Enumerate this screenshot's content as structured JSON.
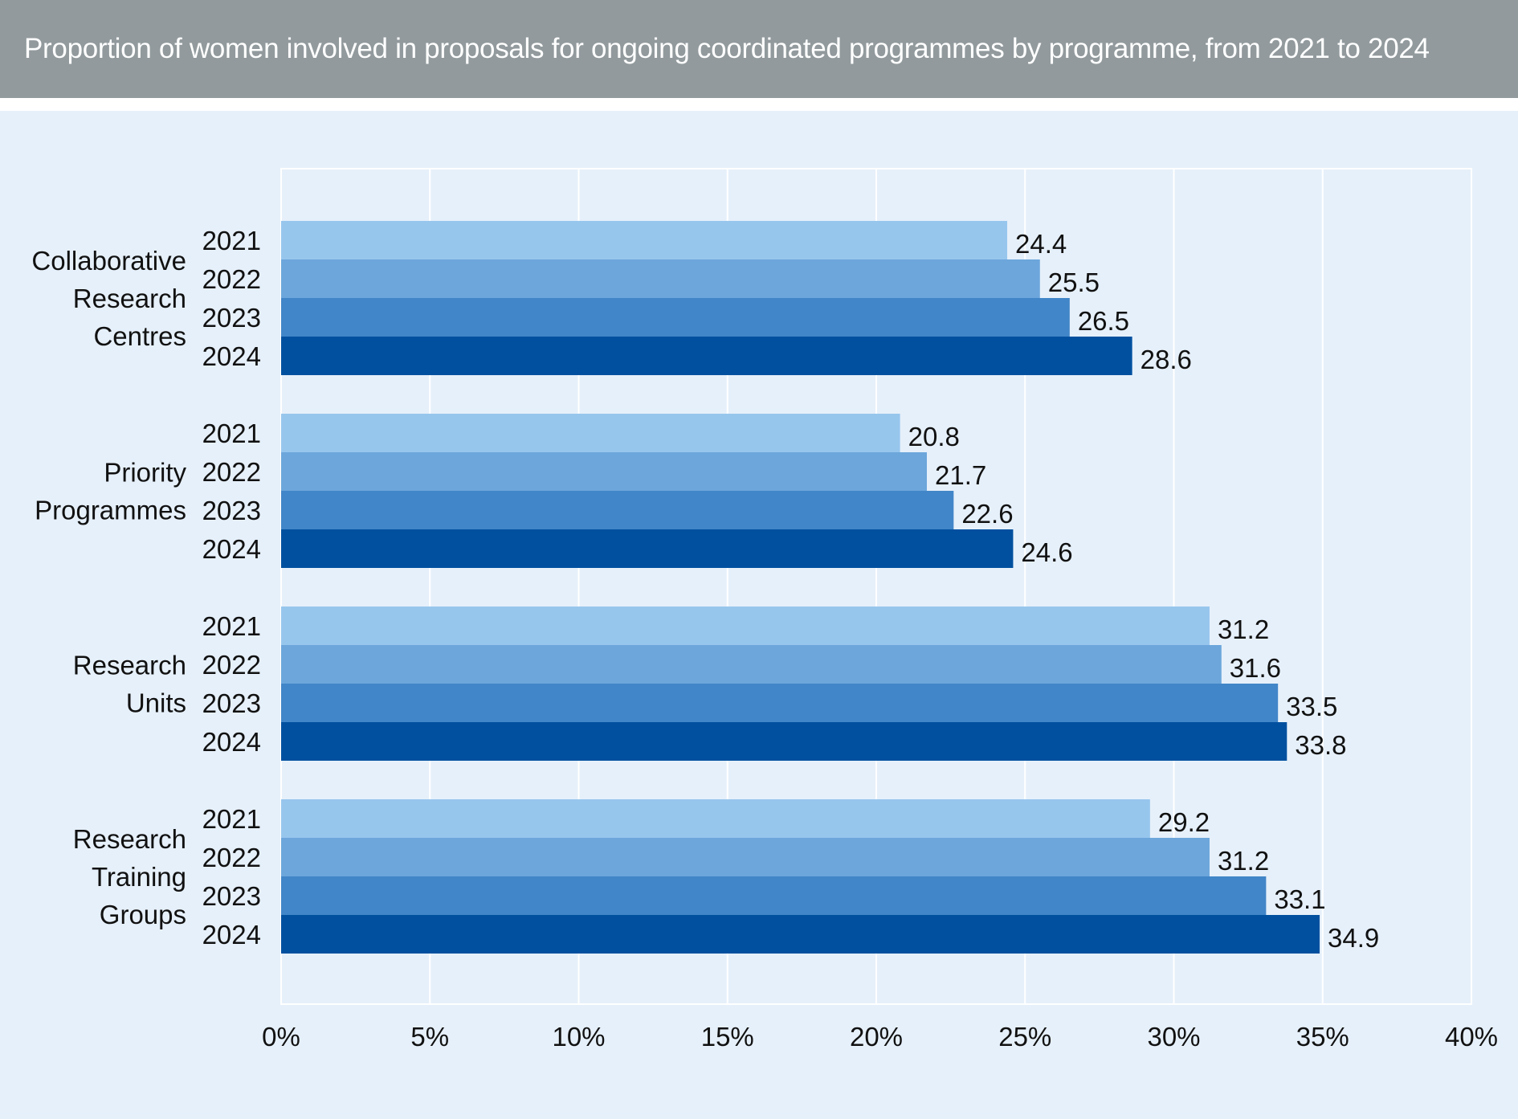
{
  "header": {
    "title": "Proportion of women involved in proposals for ongoing coordinated programmes by programme, from 2021 to 2024"
  },
  "chart_data": {
    "type": "bar",
    "orientation": "horizontal",
    "title": "Proportion of women involved in proposals for ongoing coordinated programmes by programme, from 2021 to 2024",
    "xlabel": "",
    "ylabel": "",
    "xlim": [
      0,
      40
    ],
    "x_ticks": [
      "0%",
      "5%",
      "10%",
      "15%",
      "20%",
      "25%",
      "30%",
      "35%",
      "40%"
    ],
    "x_tick_values": [
      0,
      5,
      10,
      15,
      20,
      25,
      30,
      35,
      40
    ],
    "grid": true,
    "legend": "none",
    "categories": [
      [
        "Collaborative",
        "Research",
        "Centres"
      ],
      [
        "Priority",
        "Programmes"
      ],
      [
        "Research",
        "Units"
      ],
      [
        "Research",
        "Training",
        "Groups"
      ]
    ],
    "series": [
      {
        "label": "2021",
        "color": "#97c6ed",
        "values": [
          24.4,
          20.8,
          31.2,
          29.2
        ]
      },
      {
        "label": "2022",
        "color": "#6ca6db",
        "values": [
          25.5,
          21.7,
          31.6,
          31.2
        ]
      },
      {
        "label": "2023",
        "color": "#4186c8",
        "values": [
          26.5,
          22.6,
          33.5,
          33.1
        ]
      },
      {
        "label": "2024",
        "color": "#00509f",
        "values": [
          28.6,
          24.6,
          33.8,
          34.9
        ]
      }
    ],
    "data_labels": [
      [
        "24.4",
        "25.5",
        "26.5",
        "28.6"
      ],
      [
        "20.8",
        "21.7",
        "22.6",
        "24.6"
      ],
      [
        "31.2",
        "31.6",
        "33.5",
        "33.8"
      ],
      [
        "29.2",
        "31.2",
        "33.1",
        "34.9"
      ]
    ]
  }
}
